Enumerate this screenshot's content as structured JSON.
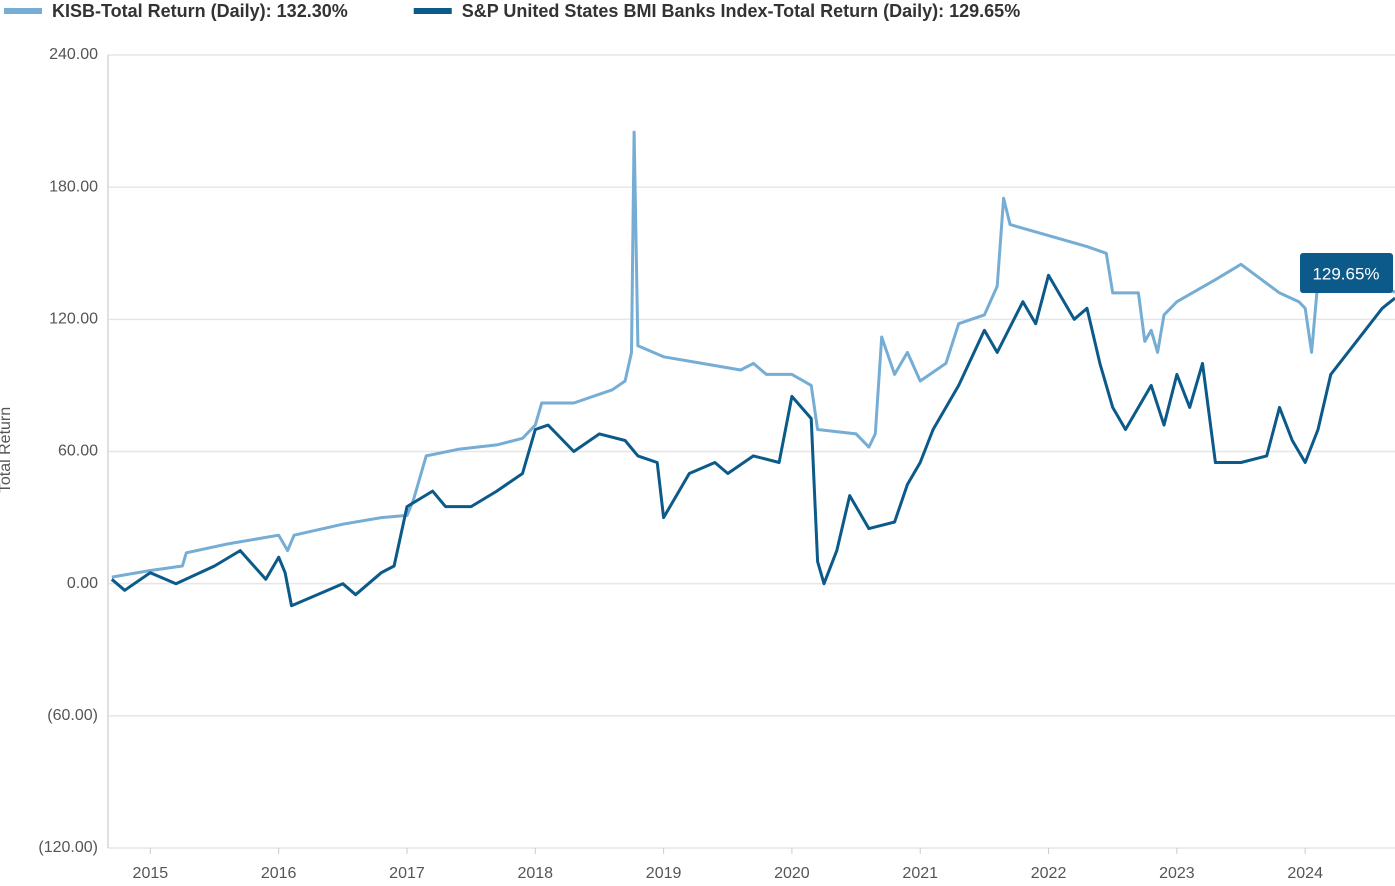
{
  "chart_data": {
    "type": "line",
    "y_label": "Total Return",
    "annotation": "129.65%",
    "xlim": [
      2014.67,
      2024.7
    ],
    "xticks": [
      2015,
      2016,
      2017,
      2018,
      2019,
      2020,
      2021,
      2022,
      2023,
      2024
    ],
    "ylim": [
      -120,
      240
    ],
    "yticks": [
      {
        "value": -120,
        "label": "(120.00)"
      },
      {
        "value": -60,
        "label": "(60.00)"
      },
      {
        "value": 0,
        "label": "0.00"
      },
      {
        "value": 60,
        "label": "60.00"
      },
      {
        "value": 120,
        "label": "120.00"
      },
      {
        "value": 180,
        "label": "180.00"
      },
      {
        "value": 240,
        "label": "240.00"
      }
    ],
    "grid": true,
    "series": [
      {
        "name": "KISB-Total Return (Daily): 132.30%",
        "color": "#76add4",
        "x": [
          2014.7,
          2015.0,
          2015.25,
          2015.28,
          2015.6,
          2016.0,
          2016.07,
          2016.12,
          2016.5,
          2016.8,
          2017.0,
          2017.05,
          2017.15,
          2017.4,
          2017.7,
          2017.9,
          2018.0,
          2018.05,
          2018.3,
          2018.6,
          2018.7,
          2018.75,
          2018.77,
          2018.8,
          2019.0,
          2019.3,
          2019.6,
          2019.7,
          2019.8,
          2020.0,
          2020.15,
          2020.2,
          2020.5,
          2020.6,
          2020.65,
          2020.7,
          2020.8,
          2020.9,
          2021.0,
          2021.2,
          2021.3,
          2021.5,
          2021.6,
          2021.65,
          2021.7,
          2022.0,
          2022.3,
          2022.45,
          2022.5,
          2022.7,
          2022.75,
          2022.8,
          2022.85,
          2022.9,
          2023.0,
          2023.3,
          2023.5,
          2023.8,
          2023.95,
          2024.0,
          2024.05,
          2024.1,
          2024.4,
          2024.7
        ],
        "values": [
          3,
          6,
          8,
          14,
          18,
          22,
          15,
          22,
          27,
          30,
          31,
          38,
          58,
          61,
          63,
          66,
          72,
          82,
          82,
          88,
          92,
          105,
          205,
          108,
          103,
          100,
          97,
          100,
          95,
          95,
          90,
          70,
          68,
          62,
          68,
          112,
          95,
          105,
          92,
          100,
          118,
          122,
          135,
          175,
          163,
          158,
          153,
          150,
          132,
          132,
          110,
          115,
          105,
          122,
          128,
          138,
          145,
          132,
          128,
          125,
          105,
          138,
          140,
          132.3
        ]
      },
      {
        "name": "S&P United States BMI Banks Index-Total Return (Daily): 129.65%",
        "color": "#0b5a8a",
        "x": [
          2014.7,
          2014.8,
          2015.0,
          2015.2,
          2015.5,
          2015.7,
          2015.9,
          2016.0,
          2016.05,
          2016.1,
          2016.3,
          2016.5,
          2016.6,
          2016.8,
          2016.9,
          2017.0,
          2017.2,
          2017.3,
          2017.5,
          2017.7,
          2017.9,
          2018.0,
          2018.1,
          2018.3,
          2018.5,
          2018.7,
          2018.8,
          2018.95,
          2019.0,
          2019.2,
          2019.4,
          2019.5,
          2019.7,
          2019.9,
          2020.0,
          2020.15,
          2020.2,
          2020.25,
          2020.35,
          2020.45,
          2020.6,
          2020.8,
          2020.9,
          2021.0,
          2021.1,
          2021.3,
          2021.5,
          2021.6,
          2021.8,
          2021.9,
          2022.0,
          2022.2,
          2022.3,
          2022.4,
          2022.5,
          2022.6,
          2022.8,
          2022.9,
          2023.0,
          2023.1,
          2023.2,
          2023.3,
          2023.5,
          2023.7,
          2023.8,
          2023.9,
          2024.0,
          2024.1,
          2024.2,
          2024.4,
          2024.6,
          2024.7
        ],
        "values": [
          2,
          -3,
          5,
          0,
          8,
          15,
          2,
          12,
          5,
          -10,
          -5,
          0,
          -5,
          5,
          8,
          35,
          42,
          35,
          35,
          42,
          50,
          70,
          72,
          60,
          68,
          65,
          58,
          55,
          30,
          50,
          55,
          50,
          58,
          55,
          85,
          75,
          10,
          0,
          15,
          40,
          25,
          28,
          45,
          55,
          70,
          90,
          115,
          105,
          128,
          118,
          140,
          120,
          125,
          100,
          80,
          70,
          90,
          72,
          95,
          80,
          100,
          55,
          55,
          58,
          80,
          65,
          55,
          70,
          95,
          110,
          125,
          129.65
        ]
      }
    ]
  }
}
